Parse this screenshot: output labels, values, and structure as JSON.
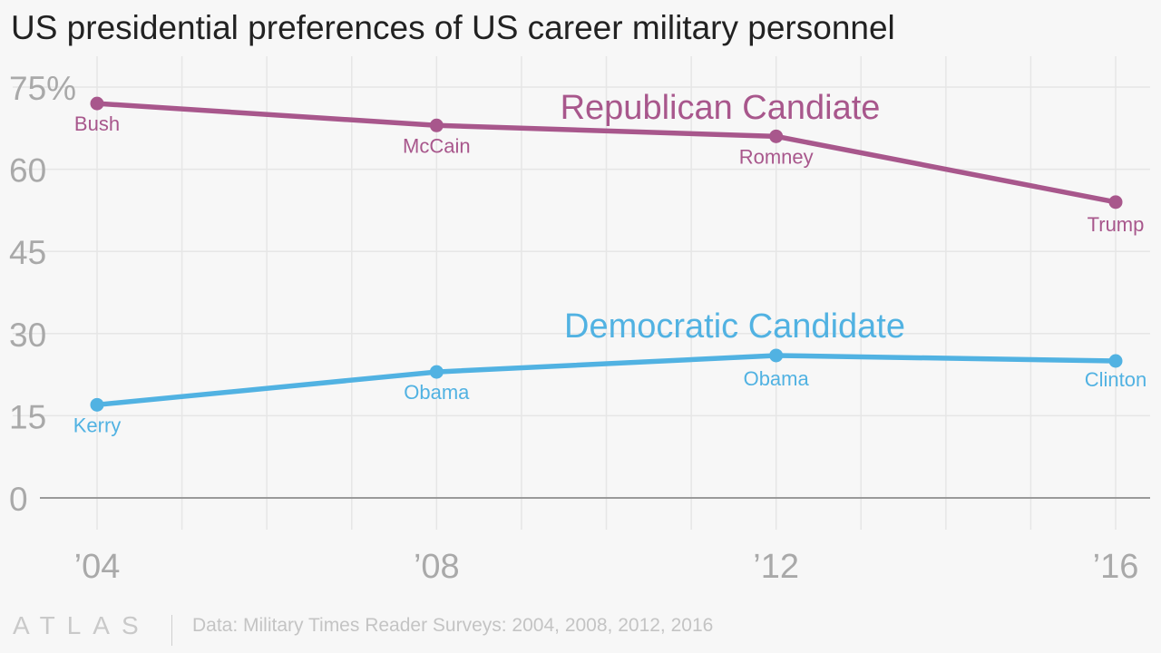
{
  "chart_data": {
    "type": "line",
    "title": "US presidential preferences of US career military personnel",
    "x": [
      2004,
      2008,
      2012,
      2016
    ],
    "x_tick_labels": [
      "’04",
      "’08",
      "’12",
      "’16"
    ],
    "y_tick_labels": [
      "75%",
      "60",
      "45",
      "30",
      "15",
      "0"
    ],
    "y_ticks": [
      75,
      60,
      45,
      30,
      15,
      0
    ],
    "ylim": [
      0,
      75
    ],
    "xlim": [
      2004,
      2016
    ],
    "grid": true,
    "series": [
      {
        "name": "Republican Candiate",
        "color": "#a8578c",
        "values": [
          72,
          68,
          66,
          54
        ],
        "point_labels": [
          "Bush",
          "McCain",
          "Romney",
          "Trump"
        ]
      },
      {
        "name": "Democratic Candidate",
        "color": "#51b2e2",
        "values": [
          17,
          23,
          26,
          25
        ],
        "point_labels": [
          "Kerry",
          "Obama",
          "Obama",
          "Clinton"
        ]
      }
    ]
  },
  "footer": {
    "logo": "ATLAS",
    "source": "Data: Military Times Reader Surveys: 2004, 2008, 2012, 2016"
  }
}
